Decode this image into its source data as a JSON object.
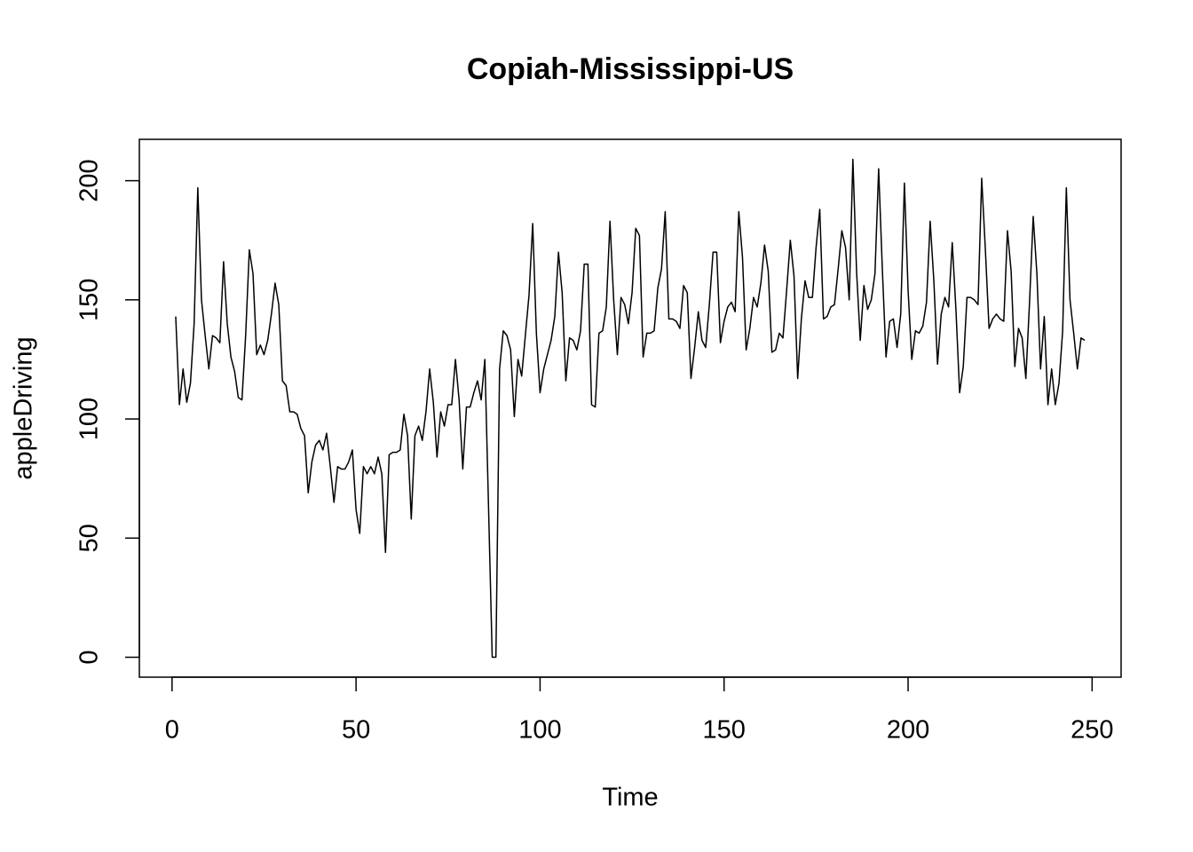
{
  "chart_data": {
    "type": "line",
    "title": "Copiah-Mississippi-US",
    "x_label": "Time",
    "y_label": "appleDriving",
    "color": "#000000",
    "x": [
      1,
      2,
      3,
      4,
      5,
      6,
      7,
      8,
      9,
      10,
      11,
      12,
      13,
      14,
      15,
      16,
      17,
      18,
      19,
      20,
      21,
      22,
      23,
      24,
      25,
      26,
      27,
      28,
      29,
      30,
      31,
      32,
      33,
      34,
      35,
      36,
      37,
      38,
      39,
      40,
      41,
      42,
      43,
      44,
      45,
      46,
      47,
      48,
      49,
      50,
      51,
      52,
      53,
      54,
      55,
      56,
      57,
      58,
      59,
      60,
      61,
      62,
      63,
      64,
      65,
      66,
      67,
      68,
      69,
      70,
      71,
      72,
      73,
      74,
      75,
      76,
      77,
      78,
      79,
      80,
      81,
      82,
      83,
      84,
      85,
      86,
      87,
      88,
      89,
      90,
      91,
      92,
      93,
      94,
      95,
      96,
      97,
      98,
      99,
      100,
      101,
      102,
      103,
      104,
      105,
      106,
      107,
      108,
      109,
      110,
      111,
      112,
      113,
      114,
      115,
      116,
      117,
      118,
      119,
      120,
      121,
      122,
      123,
      124,
      125,
      126,
      127,
      128,
      129,
      130,
      131,
      132,
      133,
      134,
      135,
      136,
      137,
      138,
      139,
      140,
      141,
      142,
      143,
      144,
      145,
      146,
      147,
      148,
      149,
      150,
      151,
      152,
      153,
      154,
      155,
      156,
      157,
      158,
      159,
      160,
      161,
      162,
      163,
      164,
      165,
      166,
      167,
      168,
      169,
      170,
      171,
      172,
      173,
      174,
      175,
      176,
      177,
      178,
      179,
      180,
      181,
      182,
      183,
      184,
      185,
      186,
      187,
      188,
      189,
      190,
      191,
      192,
      193,
      194,
      195,
      196,
      197,
      198,
      199,
      200,
      201,
      202,
      203,
      204,
      205,
      206,
      207,
      208,
      209,
      210,
      211,
      212,
      213,
      214,
      215,
      216,
      217,
      218,
      219,
      220,
      221,
      222,
      223,
      224,
      225,
      226,
      227,
      228,
      229,
      230,
      231,
      232,
      233,
      234,
      235,
      236,
      237,
      238,
      239,
      240,
      241,
      242,
      243,
      244,
      245,
      246,
      247,
      248
    ],
    "values": [
      143,
      106,
      121,
      107,
      115,
      140,
      197,
      150,
      135,
      121,
      135,
      134,
      132,
      166,
      140,
      126,
      120,
      109,
      108,
      135,
      171,
      161,
      127,
      131,
      127,
      133,
      144,
      157,
      148,
      116,
      114,
      103,
      103,
      102,
      96,
      93,
      69,
      82,
      89,
      91,
      87,
      94,
      80,
      65,
      80,
      79,
      79,
      82,
      87,
      62,
      52,
      80,
      77,
      80,
      77,
      84,
      77,
      44,
      85,
      86,
      86,
      87,
      102,
      93,
      58,
      93,
      97,
      91,
      103,
      121,
      107,
      84,
      103,
      97,
      106,
      106,
      125,
      108,
      79,
      105,
      105,
      111,
      116,
      108,
      125,
      63,
      0,
      0,
      121,
      137,
      135,
      129,
      101,
      125,
      118,
      135,
      152,
      182,
      136,
      111,
      121,
      127,
      133,
      143,
      170,
      153,
      116,
      134,
      133,
      129,
      137,
      165,
      165,
      106,
      105,
      136,
      137,
      147,
      183,
      150,
      127,
      151,
      148,
      140,
      153,
      180,
      177,
      126,
      136,
      136,
      137,
      155,
      163,
      187,
      142,
      142,
      141,
      138,
      156,
      153,
      117,
      130,
      145,
      133,
      130,
      148,
      170,
      170,
      132,
      141,
      147,
      149,
      145,
      187,
      168,
      129,
      138,
      151,
      147,
      157,
      173,
      162,
      128,
      129,
      136,
      134,
      154,
      175,
      160,
      117,
      142,
      158,
      151,
      151,
      172,
      188,
      142,
      143,
      147,
      148,
      163,
      179,
      172,
      150,
      209,
      162,
      133,
      156,
      146,
      150,
      161,
      205,
      163,
      126,
      141,
      142,
      130,
      144,
      199,
      154,
      125,
      137,
      136,
      139,
      149,
      183,
      158,
      123,
      144,
      151,
      147,
      174,
      146,
      111,
      122,
      151,
      151,
      150,
      148,
      201,
      171,
      138,
      142,
      144,
      142,
      141,
      179,
      162,
      122,
      138,
      134,
      117,
      149,
      185,
      161,
      121,
      143,
      106,
      121,
      106,
      115,
      137,
      197,
      150,
      136,
      121,
      134,
      133
    ],
    "xlim": [
      -8.88,
      257.88
    ],
    "ylim": [
      -8.36,
      217.36
    ],
    "xticks": [
      0,
      50,
      100,
      150,
      200,
      250
    ],
    "yticks": [
      0,
      50,
      100,
      150,
      200
    ]
  }
}
